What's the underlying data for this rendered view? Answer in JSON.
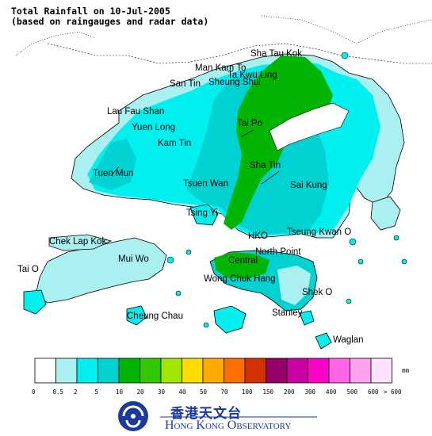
{
  "title": {
    "line1": "Total Rainfall on 10-Jul-2005",
    "line2": "(based on raingauges and radar data)"
  },
  "map": {
    "places": [
      {
        "name": "Sha Tau Kok"
      },
      {
        "name": "Man Kam To"
      },
      {
        "name": "Ta Kwu Ling"
      },
      {
        "name": "San Tin"
      },
      {
        "name": "Sheung Shui"
      },
      {
        "name": "Lau Fau Shan"
      },
      {
        "name": "Yuen Long"
      },
      {
        "name": "Tai Po"
      },
      {
        "name": "Kam Tin"
      },
      {
        "name": "Tuen Mun"
      },
      {
        "name": "Sha Tin"
      },
      {
        "name": "Sai Kung"
      },
      {
        "name": "Tsuen Wan"
      },
      {
        "name": "Tsing Yi"
      },
      {
        "name": "Chek Lap Kok"
      },
      {
        "name": "HKO"
      },
      {
        "name": "Tseung Kwan O"
      },
      {
        "name": "North Point"
      },
      {
        "name": "Mui Wo"
      },
      {
        "name": "Central"
      },
      {
        "name": "Tai O"
      },
      {
        "name": "Wong Chuk Hang"
      },
      {
        "name": "Shek O"
      },
      {
        "name": "Cheung Chau"
      },
      {
        "name": "Stanley"
      },
      {
        "name": "Waglan"
      }
    ],
    "fill_colors": {
      "sea": "#ffffff",
      "light_cyan": "#aaf0f0",
      "cyan": "#00f0f0",
      "teal": "#00d2d2",
      "green": "#00b400"
    }
  },
  "legend": {
    "unit": "mm",
    "ticks": [
      "0",
      "0.5",
      "2",
      "5",
      "10",
      "20",
      "30",
      "40",
      "50",
      "70",
      "100",
      "150",
      "200",
      "300",
      "400",
      "500",
      "600",
      "> 600"
    ],
    "colors": [
      "#ffffff",
      "#aaf0f0",
      "#00f0f0",
      "#00d2d2",
      "#00b400",
      "#32c800",
      "#a0e600",
      "#ffdc00",
      "#ffaa00",
      "#ff6e00",
      "#d23200",
      "#960064",
      "#c800a0",
      "#ff00c8",
      "#ff64e6",
      "#ffa0f0",
      "#ffe1ff"
    ]
  },
  "logo": {
    "chinese": "香港天文台",
    "english": "Hong Kong Observatory"
  }
}
